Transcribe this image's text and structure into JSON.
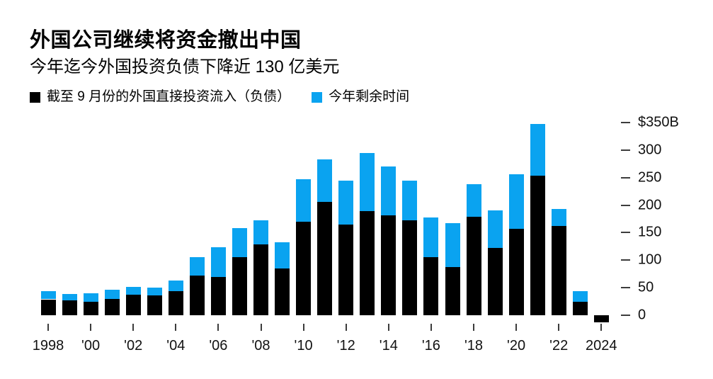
{
  "header": {
    "title": "外国公司继续将资金撤出中国",
    "subtitle": "今年迄今外国投资负债下降近 130 亿美元"
  },
  "legend": [
    {
      "label": "截至 9 月份的外国直接投资流入（负债）",
      "color": "#000000",
      "icon": "black-square-swatch"
    },
    {
      "label": "今年剩余时间",
      "color": "#0aa3f0",
      "icon": "blue-square-swatch"
    }
  ],
  "colors": {
    "background": "#ffffff",
    "bar_black": "#000000",
    "bar_blue": "#0aa3f0",
    "axis_text": "#111111",
    "tick_mark": "#3c3c3c"
  },
  "chart_data": {
    "type": "bar",
    "stacked": true,
    "title": "外国公司继续将资金撤出中国",
    "subtitle": "今年迄今外国投资负债下降近 130 亿美元",
    "unit": "USD billions",
    "categories": [
      1998,
      1999,
      2000,
      2001,
      2002,
      2003,
      2004,
      2005,
      2006,
      2007,
      2008,
      2009,
      2010,
      2011,
      2012,
      2013,
      2014,
      2015,
      2016,
      2017,
      2018,
      2019,
      2020,
      2021,
      2022,
      2023,
      2024
    ],
    "series": [
      {
        "name": "截至 9 月份的外国直接投资流入（负债）",
        "color": "#000000",
        "values": [
          29,
          27,
          25,
          30,
          37,
          36,
          44,
          72,
          69,
          106,
          129,
          85,
          170,
          206,
          165,
          189,
          182,
          173,
          106,
          87,
          179,
          122,
          157,
          254,
          162,
          25,
          -13
        ]
      },
      {
        "name": "今年剩余时间",
        "color": "#0aa3f0",
        "values": [
          15,
          12,
          15,
          16,
          14,
          14,
          19,
          34,
          55,
          52,
          44,
          48,
          77,
          77,
          79,
          106,
          88,
          71,
          72,
          80,
          59,
          68,
          99,
          94,
          31,
          19,
          0
        ]
      }
    ],
    "ylim": [
      -20,
      350
    ],
    "grid": false,
    "legend_position": "top-left",
    "y_axis_side": "right",
    "yticks": [
      {
        "value": 350,
        "label": "$350B"
      },
      {
        "value": 300,
        "label": "300"
      },
      {
        "value": 250,
        "label": "250"
      },
      {
        "value": 200,
        "label": "200"
      },
      {
        "value": 150,
        "label": "150"
      },
      {
        "value": 100,
        "label": "100"
      },
      {
        "value": 50,
        "label": "50"
      },
      {
        "value": 0,
        "label": "0"
      }
    ],
    "xticks": [
      {
        "index": 0,
        "label": "1998"
      },
      {
        "index": 2,
        "label": "'00"
      },
      {
        "index": 4,
        "label": "'02"
      },
      {
        "index": 6,
        "label": "'04"
      },
      {
        "index": 8,
        "label": "'06"
      },
      {
        "index": 10,
        "label": "'08"
      },
      {
        "index": 12,
        "label": "'10"
      },
      {
        "index": 14,
        "label": "'12"
      },
      {
        "index": 16,
        "label": "'14"
      },
      {
        "index": 18,
        "label": "'16"
      },
      {
        "index": 20,
        "label": "'18"
      },
      {
        "index": 22,
        "label": "'20"
      },
      {
        "index": 24,
        "label": "'22"
      },
      {
        "index": 26,
        "label": "2024"
      }
    ]
  }
}
